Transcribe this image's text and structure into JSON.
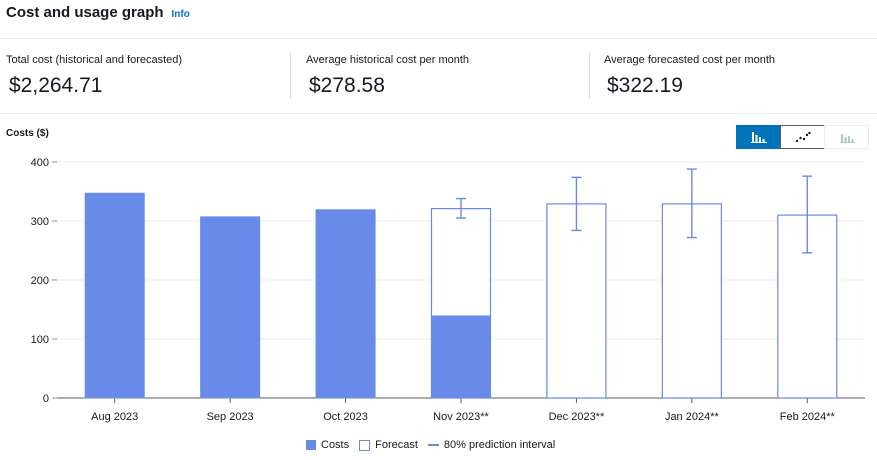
{
  "header": {
    "title": "Cost and usage graph",
    "info": "Info"
  },
  "metrics": [
    {
      "label": "Total cost (historical and forecasted)",
      "value": "$2,264.71"
    },
    {
      "label": "Average historical cost per month",
      "value": "$278.58"
    },
    {
      "label": "Average forecasted cost per month",
      "value": "$322.19"
    }
  ],
  "toggle": {
    "icons": [
      "bar-chart-icon",
      "line-chart-icon",
      "stacked-bar-chart-icon"
    ],
    "active": "bar-chart-icon"
  },
  "colors": {
    "accent": "#688ae8",
    "button_active": "#0073bb"
  },
  "chart_data": {
    "type": "bar",
    "ylabel": "Costs ($)",
    "ylim": [
      0,
      400
    ],
    "yticks": [
      0,
      100,
      200,
      300,
      400
    ],
    "grid": true,
    "legend_placement": "bottom",
    "categories": [
      "Aug 2023",
      "Sep 2023",
      "Oct 2023",
      "Nov 2023**",
      "Dec 2023**",
      "Jan 2024**",
      "Feb 2024**"
    ],
    "series": [
      {
        "name": "Costs",
        "values": [
          347,
          307,
          319,
          139,
          0,
          0,
          0
        ]
      },
      {
        "name": "Forecast",
        "values": [
          null,
          null,
          null,
          321,
          329,
          329,
          310
        ]
      },
      {
        "name": "80% prediction interval",
        "low": [
          null,
          null,
          null,
          305,
          284,
          272,
          246
        ],
        "high": [
          null,
          null,
          null,
          338,
          374,
          388,
          376
        ]
      }
    ]
  }
}
